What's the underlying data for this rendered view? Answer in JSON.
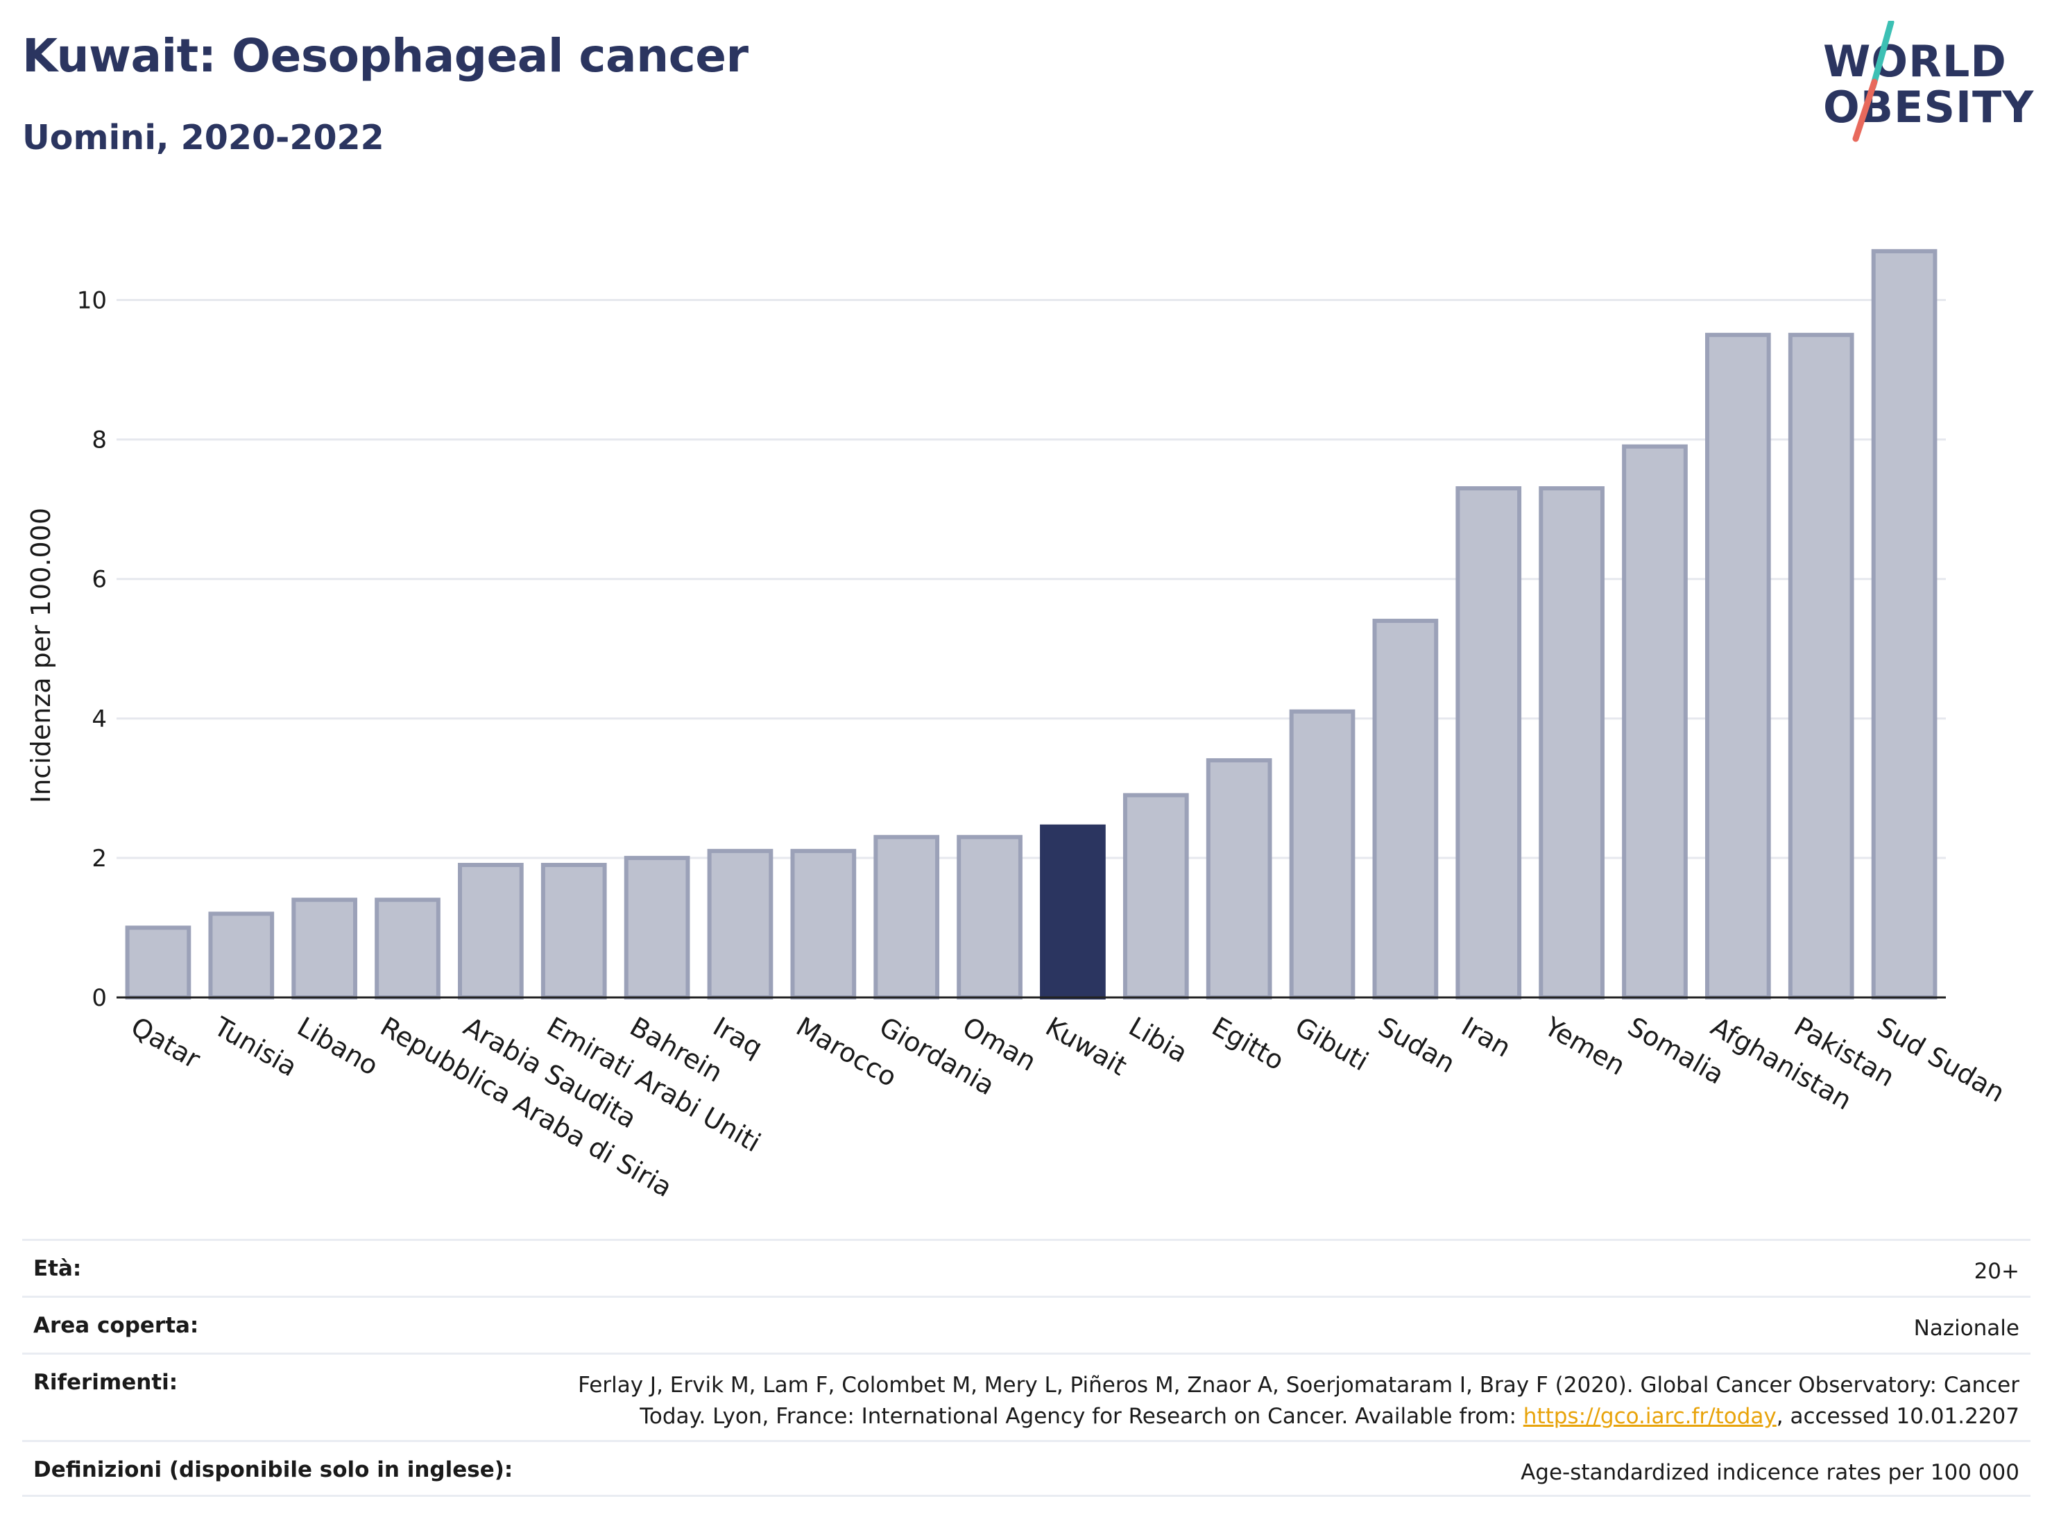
{
  "header": {
    "title": "Kuwait: Oesophageal cancer",
    "subtitle": "Uomini, 2020-2022",
    "logo_line1": "WORLD",
    "logo_line2": "OBESITY"
  },
  "colors": {
    "bar": "#bdc1cf",
    "bar_stroke": "#9ba1b8",
    "highlight": "#2b3560",
    "grid": "#e6e8ee",
    "logo_teal": "#3cc0b4",
    "logo_coral": "#e8695c",
    "link": "#e8a30a"
  },
  "chart_data": {
    "type": "bar",
    "ylabel": "Incidenza per 100.000",
    "ylim": [
      0,
      11
    ],
    "yticks": [
      0,
      2,
      4,
      6,
      8,
      10
    ],
    "grid": true,
    "highlight": "Kuwait",
    "categories": [
      "Qatar",
      "Tunisia",
      "Libano",
      "Repubblica Araba di Siria",
      "Arabia Saudita",
      "Emirati Arabi Uniti",
      "Bahrein",
      "Iraq",
      "Marocco",
      "Giordania",
      "Oman",
      "Kuwait",
      "Libia",
      "Egitto",
      "Gibuti",
      "Sudan",
      "Iran",
      "Yemen",
      "Somalia",
      "Afghanistan",
      "Pakistan",
      "Sud Sudan"
    ],
    "values": [
      1.0,
      1.2,
      1.4,
      1.4,
      1.9,
      1.9,
      2.0,
      2.1,
      2.1,
      2.3,
      2.3,
      2.45,
      2.9,
      3.4,
      4.1,
      5.4,
      7.3,
      7.3,
      7.9,
      9.5,
      9.5,
      10.7
    ]
  },
  "meta": {
    "age_label": "Età:",
    "age_value": "20+",
    "area_label": "Area coperta:",
    "area_value": "Nazionale",
    "ref_label": "Riferimenti:",
    "ref_text_1": "Ferlay J, Ervik M, Lam F, Colombet M, Mery L, Piñeros M, Znaor A, Soerjomataram I, Bray F (2020). Global Cancer Observatory: Cancer",
    "ref_text_2": "Today. Lyon, France: International Agency for Research on Cancer. Available from: ",
    "ref_link": "https://gco.iarc.fr/today",
    "ref_text_3": ", accessed 10.01.2207",
    "def_label": "Definizioni (disponibile solo in inglese):",
    "def_value": "Age-standardized indicence rates per 100 000"
  }
}
